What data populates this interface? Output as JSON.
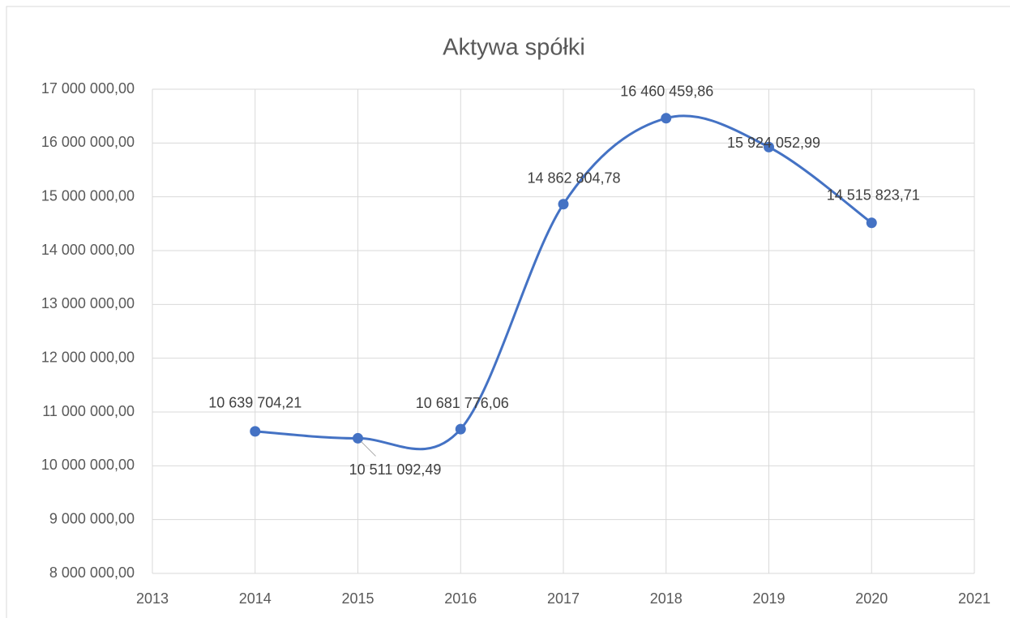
{
  "chart_data": {
    "type": "line",
    "title": "Aktywa spółki",
    "x": [
      2014,
      2015,
      2016,
      2017,
      2018,
      2019,
      2020
    ],
    "series": [
      {
        "name": "Aktywa spółki",
        "color": "#4472c4",
        "values": [
          10639704.21,
          10511092.49,
          10681776.06,
          14862804.78,
          16460459.86,
          15924052.99,
          14515823.71
        ],
        "value_labels": [
          "10 639 704,21",
          "10 511 092,49",
          "10 681 776,06",
          "14 862 804,78",
          "16 460 459,86",
          "15 924 052,99",
          "14 515 823,71"
        ]
      }
    ],
    "xlim": [
      2013,
      2021
    ],
    "xticks": [
      2013,
      2014,
      2015,
      2016,
      2017,
      2018,
      2019,
      2020,
      2021
    ],
    "ylim": [
      8000000,
      17000000
    ],
    "yticks": [
      {
        "value": 8000000,
        "label": "8 000 000,00"
      },
      {
        "value": 9000000,
        "label": "9 000 000,00"
      },
      {
        "value": 10000000,
        "label": "10 000 000,00"
      },
      {
        "value": 11000000,
        "label": "11 000 000,00"
      },
      {
        "value": 12000000,
        "label": "12 000 000,00"
      },
      {
        "value": 13000000,
        "label": "13 000 000,00"
      },
      {
        "value": 14000000,
        "label": "14 000 000,00"
      },
      {
        "value": 15000000,
        "label": "15 000 000,00"
      },
      {
        "value": 16000000,
        "label": "16 000 000,00"
      },
      {
        "value": 17000000,
        "label": "17 000 000,00"
      }
    ],
    "grid": true,
    "smooth": true
  }
}
